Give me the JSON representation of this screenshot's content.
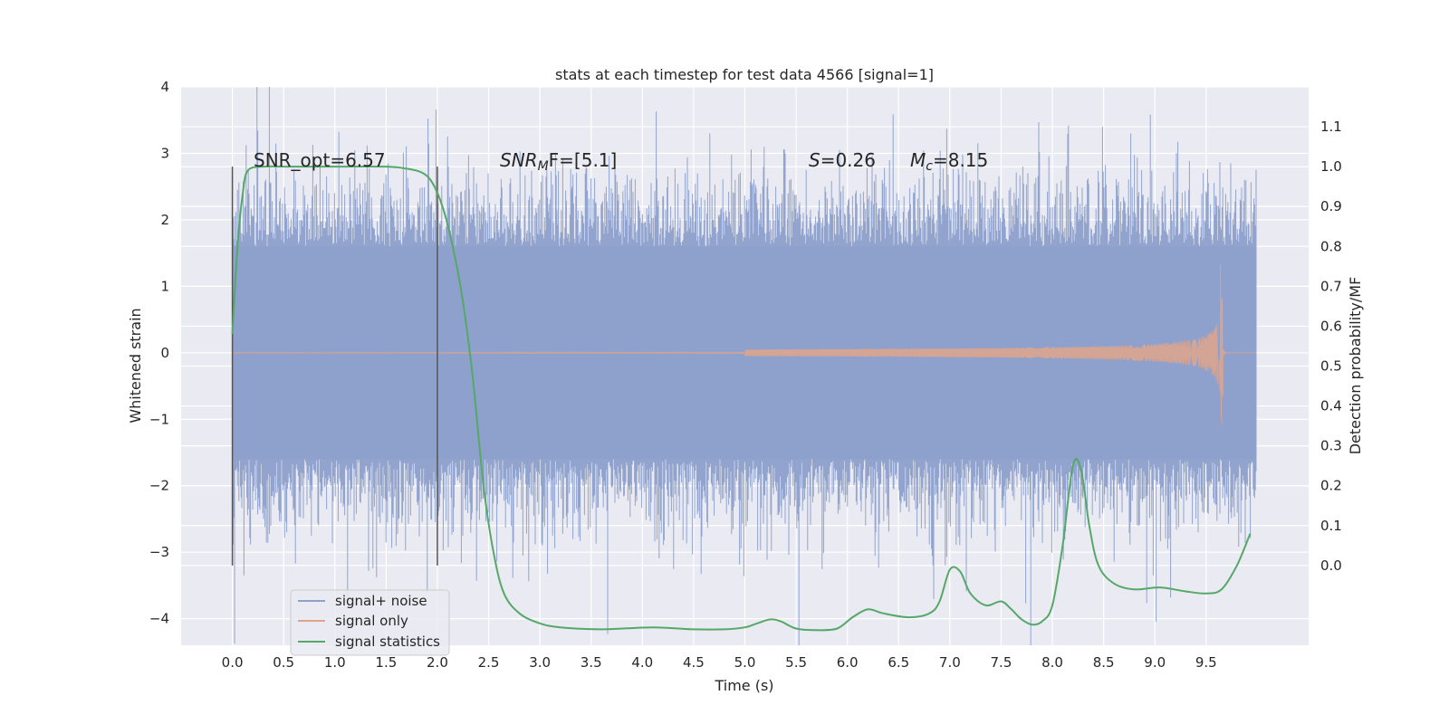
{
  "chart_data": {
    "type": "line",
    "title": "stats at each timestep for test data 4566 [signal=1]",
    "xlabel": "Time (s)",
    "ylabel": "Whitened strain",
    "ylabel_right": "Detection probability/MF",
    "xlim": [
      -0.5,
      10.5
    ],
    "ylim": [
      -4.4,
      4.0
    ],
    "ylim_right": [
      -0.2,
      1.2
    ],
    "x_ticks": [
      "0.0",
      "0.5",
      "1.0",
      "1.5",
      "2.0",
      "2.5",
      "3.0",
      "3.5",
      "4.0",
      "4.5",
      "5.0",
      "5.5",
      "6.0",
      "6.5",
      "7.0",
      "7.5",
      "8.0",
      "8.5",
      "9.0",
      "9.5"
    ],
    "y_ticks": [
      "4",
      "3",
      "2",
      "1",
      "0",
      "−1",
      "−2",
      "−3",
      "−4"
    ],
    "y_ticks_right": [
      "1.1",
      "1.0",
      "0.9",
      "0.8",
      "0.7",
      "0.6",
      "0.5",
      "0.4",
      "0.3",
      "0.2",
      "0.1",
      "0.0"
    ],
    "grid": true,
    "legend_position": "bottom-left",
    "annotations": {
      "snr_opt": "SNR_opt=6.57",
      "snr_mf_main": "SNR",
      "snr_mf_sub": "M",
      "snr_mf_rest": "F=[5.1]",
      "s_main": "S",
      "s_rest": "=0.26",
      "mc_main": "M",
      "mc_sub": "c",
      "mc_rest": "=8.15"
    },
    "markers": [
      0.0,
      2.0
    ],
    "series": [
      {
        "name": "signal+ noise",
        "color": "#8da0cb",
        "noise_envelope": 2.2,
        "x_range": [
          0.0,
          9.99
        ]
      },
      {
        "name": "signal only",
        "color": "#e1a48a",
        "chirp_end": 9.67,
        "peak_amplitude": 0.85
      },
      {
        "name": "signal statistics",
        "color": "#55a868",
        "x": [
          0.0,
          0.05,
          0.1,
          0.15,
          0.3,
          0.5,
          1.0,
          1.5,
          1.7,
          1.85,
          1.95,
          2.05,
          2.15,
          2.25,
          2.35,
          2.45,
          2.55,
          2.65,
          2.8,
          3.0,
          3.2,
          3.6,
          4.1,
          4.5,
          4.8,
          5.0,
          5.12,
          5.25,
          5.35,
          5.5,
          5.7,
          5.9,
          6.05,
          6.2,
          6.35,
          6.6,
          6.8,
          6.9,
          7.0,
          7.1,
          7.2,
          7.35,
          7.5,
          7.6,
          7.7,
          7.8,
          7.9,
          8.0,
          8.1,
          8.2,
          8.28,
          8.36,
          8.45,
          8.6,
          8.8,
          9.05,
          9.3,
          9.5,
          9.65,
          9.8,
          9.93
        ],
        "y": [
          0.58,
          0.8,
          0.93,
          0.99,
          1.0,
          1.0,
          1.0,
          1.0,
          0.995,
          0.985,
          0.96,
          0.9,
          0.8,
          0.66,
          0.46,
          0.2,
          0.03,
          -0.07,
          -0.12,
          -0.145,
          -0.155,
          -0.16,
          -0.155,
          -0.16,
          -0.16,
          -0.155,
          -0.145,
          -0.135,
          -0.14,
          -0.158,
          -0.162,
          -0.158,
          -0.13,
          -0.11,
          -0.12,
          -0.13,
          -0.12,
          -0.09,
          -0.01,
          -0.015,
          -0.07,
          -0.1,
          -0.09,
          -0.11,
          -0.135,
          -0.148,
          -0.14,
          -0.1,
          0.05,
          0.25,
          0.24,
          0.1,
          0.0,
          -0.045,
          -0.06,
          -0.055,
          -0.065,
          -0.07,
          -0.06,
          0.0,
          0.08
        ]
      }
    ]
  }
}
